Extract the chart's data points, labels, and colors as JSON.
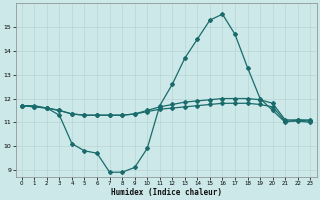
{
  "xlabel": "Humidex (Indice chaleur)",
  "bg_color": "#cce8e8",
  "grid_color": "#b8d4d4",
  "line_color": "#1a6b6b",
  "xlim": [
    -0.5,
    23.5
  ],
  "ylim": [
    8.7,
    16.0
  ],
  "yticks": [
    9,
    10,
    11,
    12,
    13,
    14,
    15
  ],
  "xticks": [
    0,
    1,
    2,
    3,
    4,
    5,
    6,
    7,
    8,
    9,
    10,
    11,
    12,
    13,
    14,
    15,
    16,
    17,
    18,
    19,
    20,
    21,
    22,
    23
  ],
  "line1_x": [
    0,
    1,
    2,
    3,
    4,
    5,
    6,
    7,
    8,
    9,
    10,
    11,
    12,
    13,
    14,
    15,
    16,
    17,
    18,
    19,
    20,
    21,
    22,
    23
  ],
  "line1_y": [
    11.7,
    11.7,
    11.6,
    11.3,
    10.1,
    9.8,
    9.7,
    8.9,
    8.9,
    9.1,
    9.9,
    11.7,
    12.6,
    13.7,
    14.5,
    15.3,
    15.55,
    14.7,
    13.3,
    12.0,
    11.5,
    11.0,
    11.1,
    11.1
  ],
  "line2_x": [
    0,
    1,
    2,
    3,
    4,
    5,
    6,
    7,
    8,
    9,
    10,
    11,
    12,
    13,
    14,
    15,
    16,
    17,
    18,
    19,
    20,
    21,
    22,
    23
  ],
  "line2_y": [
    11.7,
    11.65,
    11.6,
    11.5,
    11.35,
    11.3,
    11.3,
    11.3,
    11.3,
    11.35,
    11.5,
    11.65,
    11.75,
    11.85,
    11.9,
    11.95,
    12.0,
    12.0,
    12.0,
    11.95,
    11.8,
    11.1,
    11.1,
    11.05
  ],
  "line3_x": [
    0,
    1,
    2,
    3,
    4,
    5,
    6,
    7,
    8,
    9,
    10,
    11,
    12,
    13,
    14,
    15,
    16,
    17,
    18,
    19,
    20,
    21,
    22,
    23
  ],
  "line3_y": [
    11.7,
    11.65,
    11.6,
    11.5,
    11.35,
    11.3,
    11.3,
    11.3,
    11.3,
    11.35,
    11.45,
    11.55,
    11.6,
    11.65,
    11.7,
    11.75,
    11.8,
    11.8,
    11.8,
    11.75,
    11.65,
    11.05,
    11.05,
    11.0
  ]
}
